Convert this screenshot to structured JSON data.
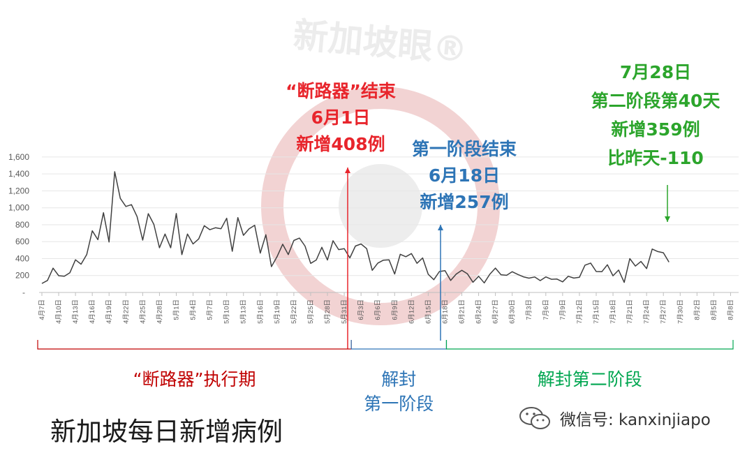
{
  "chart_data": {
    "type": "line",
    "title": "新加坡每日新增病例",
    "watermark": "新加坡眼®",
    "ylim": [
      0,
      1600
    ],
    "yticks": [
      {
        "v": 200,
        "label": "200"
      },
      {
        "v": 400,
        "label": "400"
      },
      {
        "v": 600,
        "label": "600"
      },
      {
        "v": 800,
        "label": "800"
      },
      {
        "v": 1000,
        "label": "1,000"
      },
      {
        "v": 1200,
        "label": "1,200"
      },
      {
        "v": 1400,
        "label": "1,400"
      },
      {
        "v": 1600,
        "label": "1,600"
      }
    ],
    "x_tick_labels": [
      {
        "day": 0,
        "label": "4月7日"
      },
      {
        "day": 3,
        "label": "4月10日"
      },
      {
        "day": 6,
        "label": "4月13日"
      },
      {
        "day": 9,
        "label": "4月16日"
      },
      {
        "day": 12,
        "label": "4月19日"
      },
      {
        "day": 15,
        "label": "4月22日"
      },
      {
        "day": 18,
        "label": "4月25日"
      },
      {
        "day": 21,
        "label": "4月28日"
      },
      {
        "day": 24,
        "label": "5月1日"
      },
      {
        "day": 27,
        "label": "5月4日"
      },
      {
        "day": 30,
        "label": "5月7日"
      },
      {
        "day": 33,
        "label": "5月10日"
      },
      {
        "day": 36,
        "label": "5月13日"
      },
      {
        "day": 39,
        "label": "5月16日"
      },
      {
        "day": 42,
        "label": "5月19日"
      },
      {
        "day": 45,
        "label": "5月22日"
      },
      {
        "day": 48,
        "label": "5月25日"
      },
      {
        "day": 51,
        "label": "5月28日"
      },
      {
        "day": 54,
        "label": "5月31日"
      },
      {
        "day": 57,
        "label": "6月3日"
      },
      {
        "day": 60,
        "label": "6月6日"
      },
      {
        "day": 63,
        "label": "6月9日"
      },
      {
        "day": 66,
        "label": "6月12日"
      },
      {
        "day": 69,
        "label": "6月15日"
      },
      {
        "day": 72,
        "label": "6月18日"
      },
      {
        "day": 75,
        "label": "6月21日"
      },
      {
        "day": 78,
        "label": "6月24日"
      },
      {
        "day": 81,
        "label": "6月27日"
      },
      {
        "day": 84,
        "label": "6月30日"
      },
      {
        "day": 87,
        "label": "7月3日"
      },
      {
        "day": 90,
        "label": "7月6日"
      },
      {
        "day": 93,
        "label": "7月9日"
      },
      {
        "day": 96,
        "label": "7月12日"
      },
      {
        "day": 99,
        "label": "7月15日"
      },
      {
        "day": 102,
        "label": "7月18日"
      },
      {
        "day": 105,
        "label": "7月21日"
      },
      {
        "day": 108,
        "label": "7月24日"
      },
      {
        "day": 111,
        "label": "7月27日"
      },
      {
        "day": 114,
        "label": "7月30日"
      },
      {
        "day": 117,
        "label": "8月2日"
      },
      {
        "day": 120,
        "label": "8月5日"
      },
      {
        "day": 123,
        "label": "8月8日"
      }
    ],
    "series": [
      {
        "color": "#404040",
        "values": [
          106,
          142,
          287,
          198,
          191,
          233,
          386,
          334,
          447,
          728,
          623,
          942,
          596,
          1426,
          1111,
          1016,
          1037,
          897,
          618,
          931,
          804,
          528,
          690,
          528,
          932,
          447,
          690,
          573,
          632,
          788,
          741,
          764,
          753,
          876,
          486,
          884,
          675,
          751,
          793,
          465,
          682,
          305,
          422,
          570,
          448,
          614,
          642,
          548,
          344,
          383,
          533,
          383,
          611,
          506,
          518,
          408,
          548,
          573,
          518,
          261,
          347,
          382,
          386,
          218,
          451,
          422,
          459,
          345,
          407,
          214,
          151,
          247,
          257,
          142,
          218,
          262,
          220,
          120,
          191,
          113,
          215,
          288,
          209,
          203,
          245,
          213,
          185,
          169,
          183,
          140,
          184,
          156,
          158,
          125,
          191,
          170,
          179,
          322,
          347,
          247,
          245,
          327,
          197,
          265,
          119,
          400,
          312,
          366,
          282,
          513,
          483,
          469,
          359
        ]
      }
    ],
    "annotations": {
      "circuit_breaker_end": [
        "“断路器”结束",
        "6月1日",
        "新增408例"
      ],
      "phase1_end": [
        "第一阶段结束",
        "6月18日",
        "新增257例"
      ],
      "latest": [
        "7月28日",
        "第二阶段第40天",
        "新增359例",
        "比昨天-110"
      ]
    },
    "phases": [
      {
        "label_lines": [
          "“断路器”执行期"
        ],
        "start_day": 0,
        "end_day": 55,
        "color": "#c00000"
      },
      {
        "label_lines": [
          "解封",
          "第一阶段"
        ],
        "start_day": 56,
        "end_day": 72,
        "color": "#2e75b6"
      },
      {
        "label_lines": [
          "解封第二阶段"
        ],
        "start_day": 73,
        "end_day": 124,
        "color": "#00a650"
      }
    ],
    "colors": {
      "red": "#e8252c",
      "blue": "#2e75b6",
      "green": "#2ca52c",
      "line": "#404040"
    }
  },
  "credit": {
    "icon": "wechat-icon",
    "text": "微信号: kanxinjiapo"
  }
}
